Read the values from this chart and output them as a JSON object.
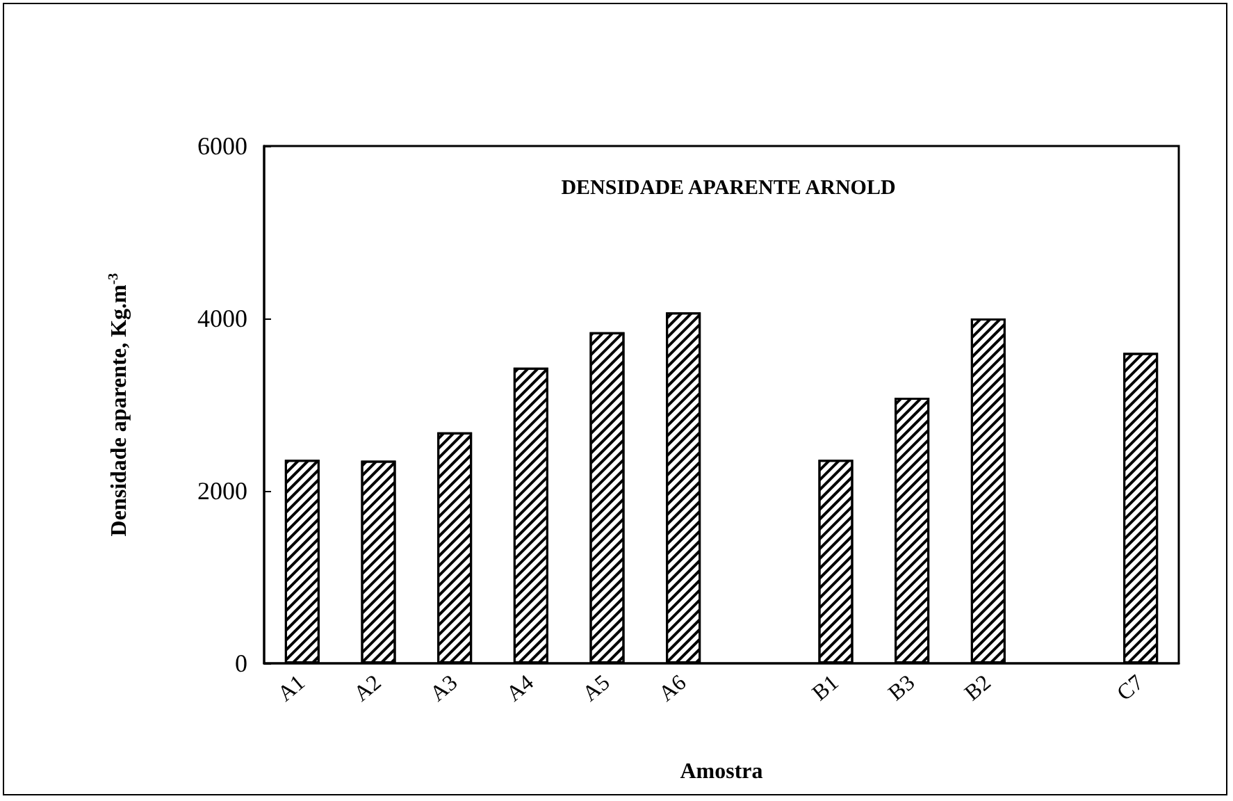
{
  "chart_data": {
    "type": "bar",
    "title": "DENSIDADE APARENTE ARNOLD",
    "xlabel": "Amostra",
    "ylabel": "Densidade aparente, Kg.m$^{-3}$",
    "categories": [
      "A1",
      "A2",
      "A3",
      "A4",
      "A5",
      "A6",
      null,
      "B1",
      "B3",
      "B2",
      null,
      "C7"
    ],
    "values": [
      2360,
      2350,
      2680,
      3430,
      3840,
      4070,
      null,
      2360,
      3080,
      4000,
      null,
      3600
    ],
    "color": "#000000",
    "ylim": [
      0,
      6000
    ],
    "yticks": [
      0,
      2000,
      4000,
      6000
    ],
    "grid": false
  }
}
